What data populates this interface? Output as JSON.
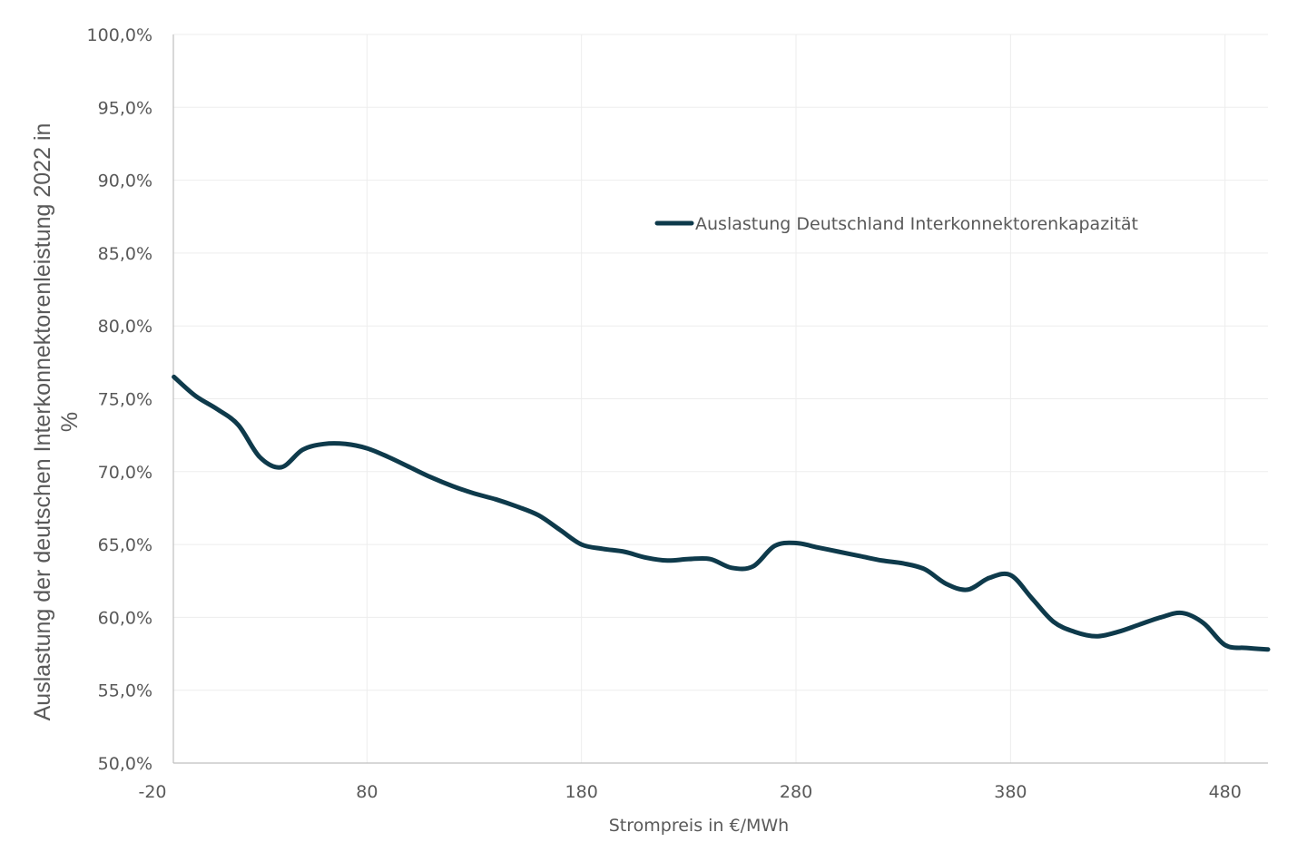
{
  "chart_data": {
    "type": "line",
    "title": "",
    "xlabel": "Strompreis in €/MWh",
    "ylabel_lines": [
      "Auslastung der deutschen Interkonnektorenleistung 2022 in",
      "%"
    ],
    "xlim": [
      -20,
      500
    ],
    "ylim": [
      50,
      100
    ],
    "x_ticks": [
      -20,
      80,
      180,
      280,
      380,
      480
    ],
    "x_tick_labels": [
      "-20",
      "80",
      "180",
      "280",
      "380",
      "480"
    ],
    "y_ticks": [
      50,
      55,
      60,
      65,
      70,
      75,
      80,
      85,
      90,
      95,
      100
    ],
    "y_tick_labels": [
      "50,0%",
      "55,0%",
      "60,0%",
      "65,0%",
      "70,0%",
      "75,0%",
      "80,0%",
      "85,0%",
      "90,0%",
      "95,0%",
      "100,0%"
    ],
    "grid": true,
    "legend_position": "top-right",
    "series": [
      {
        "name": "Auslastung Deutschland Interkonnektorenkapazität",
        "color": "#0e3a4b",
        "x": [
          -10,
          0,
          10,
          20,
          30,
          40,
          50,
          60,
          70,
          80,
          90,
          100,
          110,
          120,
          130,
          140,
          150,
          160,
          170,
          180,
          190,
          200,
          210,
          220,
          230,
          240,
          250,
          260,
          270,
          280,
          290,
          300,
          310,
          320,
          330,
          340,
          350,
          360,
          370,
          380,
          390,
          400,
          410,
          420,
          430,
          440,
          450,
          460,
          470,
          480,
          490,
          500
        ],
        "values": [
          76.5,
          75.2,
          74.3,
          73.2,
          71.0,
          70.3,
          71.5,
          71.9,
          71.9,
          71.6,
          71.0,
          70.3,
          69.6,
          69.0,
          68.5,
          68.1,
          67.6,
          67.0,
          66.0,
          65.0,
          64.7,
          64.5,
          64.1,
          63.9,
          64.0,
          64.0,
          63.4,
          63.5,
          64.9,
          65.1,
          64.8,
          64.5,
          64.2,
          63.9,
          63.7,
          63.3,
          62.3,
          61.9,
          62.7,
          62.9,
          61.3,
          59.7,
          59.0,
          58.7,
          59.0,
          59.5,
          60.0,
          60.3,
          59.6,
          58.1,
          57.9,
          57.8
        ]
      }
    ]
  }
}
